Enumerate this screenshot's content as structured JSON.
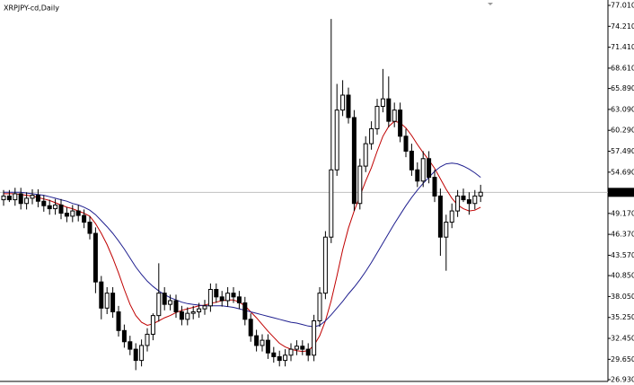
{
  "chart_data": {
    "type": "candlestick",
    "title": "XRPJPY-cd,Daily",
    "open": [
      51.0,
      51.5,
      51.0,
      51.8,
      50.5,
      51.2,
      51.6,
      50.8,
      50.2,
      49.8,
      50.3,
      49.2,
      48.8,
      49.5,
      48.9,
      48.0,
      46.5,
      40.0,
      36.5,
      38.5,
      36.0,
      33.5,
      32.0,
      31.0,
      29.5,
      31.5,
      33.0,
      35.5,
      38.5,
      37.0,
      37.5,
      36.0,
      35.0,
      35.8,
      36.0,
      36.4,
      36.8,
      39.0,
      38.0,
      37.5,
      38.5,
      38.0,
      37.2,
      35.0,
      32.8,
      31.5,
      32.2,
      30.5,
      30.0,
      29.5,
      30.2,
      31.0,
      31.4,
      31.0,
      30.2,
      34.8,
      38.5,
      46.0,
      55.0,
      63.0,
      65.0,
      62.0,
      50.5,
      55.5,
      58.5,
      60.5,
      63.5,
      64.5,
      61.5,
      63.0,
      59.5,
      57.5,
      55.0,
      53.5,
      56.5,
      54.0,
      51.5,
      46.0,
      48.0,
      49.5,
      51.5,
      51.0,
      50.5,
      51.5
    ],
    "high": [
      52.3,
      52.3,
      52.6,
      52.6,
      52.0,
      52.4,
      52.4,
      51.6,
      51.0,
      51.1,
      51.1,
      50.0,
      50.3,
      50.3,
      49.7,
      48.8,
      47.3,
      40.8,
      39.3,
      39.3,
      36.8,
      34.3,
      32.8,
      31.8,
      32.3,
      33.8,
      35.8,
      42.5,
      39.3,
      38.3,
      38.3,
      36.8,
      36.6,
      36.8,
      37.2,
      37.6,
      39.8,
      39.8,
      38.8,
      39.3,
      39.3,
      38.8,
      38.0,
      35.8,
      33.6,
      33.0,
      33.0,
      31.3,
      30.8,
      31.0,
      31.8,
      32.2,
      32.2,
      31.8,
      35.6,
      39.3,
      46.8,
      75.2,
      66.5,
      67.0,
      66.0,
      63.0,
      56.5,
      59.5,
      61.5,
      64.5,
      68.5,
      67.5,
      64.0,
      64.0,
      60.5,
      58.5,
      56.0,
      57.5,
      57.5,
      55.0,
      52.5,
      49.0,
      50.5,
      52.3,
      52.5,
      52.0,
      52.3,
      53.0
    ],
    "low": [
      50.2,
      50.7,
      50.2,
      49.7,
      49.7,
      50.4,
      50.0,
      49.4,
      49.0,
      49.0,
      48.4,
      48.0,
      48.0,
      48.1,
      47.2,
      45.7,
      38.5,
      35.0,
      35.7,
      35.2,
      32.7,
      31.2,
      30.2,
      28.2,
      28.7,
      30.7,
      32.2,
      34.7,
      36.2,
      36.2,
      35.2,
      34.2,
      34.2,
      35.0,
      35.2,
      35.6,
      36.0,
      37.2,
      36.7,
      36.7,
      37.2,
      36.4,
      34.2,
      32.0,
      30.7,
      30.7,
      29.7,
      29.2,
      28.7,
      28.7,
      29.4,
      30.2,
      30.2,
      29.4,
      29.4,
      34.0,
      37.7,
      45.2,
      54.2,
      62.2,
      61.2,
      49.5,
      49.7,
      54.7,
      57.7,
      59.7,
      62.7,
      60.7,
      60.7,
      58.7,
      56.7,
      54.2,
      52.7,
      52.7,
      53.2,
      50.7,
      43.5,
      41.5,
      47.2,
      48.7,
      50.7,
      49.0,
      49.7,
      50.7
    ],
    "close": [
      51.5,
      51.0,
      51.8,
      50.5,
      51.2,
      51.6,
      50.8,
      50.2,
      49.8,
      50.3,
      49.2,
      48.8,
      49.5,
      48.9,
      48.0,
      46.5,
      40.0,
      36.5,
      38.5,
      36.0,
      33.5,
      32.0,
      31.0,
      29.5,
      31.5,
      33.0,
      35.5,
      38.5,
      37.0,
      37.5,
      36.0,
      35.0,
      35.8,
      36.0,
      36.4,
      36.8,
      39.0,
      38.0,
      37.5,
      38.5,
      38.0,
      37.2,
      35.0,
      32.8,
      31.5,
      32.2,
      30.5,
      30.0,
      29.5,
      30.2,
      31.0,
      31.4,
      31.0,
      30.2,
      34.8,
      38.5,
      46.0,
      55.0,
      63.0,
      65.0,
      62.0,
      50.5,
      55.5,
      58.5,
      60.5,
      63.5,
      64.5,
      61.5,
      63.0,
      59.5,
      57.5,
      55.0,
      53.5,
      56.5,
      54.0,
      51.5,
      46.0,
      48.0,
      49.5,
      51.5,
      51.0,
      50.5,
      51.5,
      52.0
    ],
    "up_color": "#ffffff",
    "down_color": "#000000",
    "overlays": [
      {
        "color": "#c00000",
        "values": [
          51.8,
          51.8,
          51.8,
          51.7,
          51.6,
          51.5,
          51.3,
          51.1,
          50.9,
          50.6,
          50.3,
          50.0,
          49.8,
          49.5,
          49.2,
          48.8,
          47.8,
          46.5,
          45.0,
          43.2,
          41.2,
          39.0,
          37.0,
          35.5,
          34.6,
          34.2,
          34.4,
          34.8,
          35.2,
          35.5,
          35.9,
          36.2,
          36.4,
          36.6,
          36.8,
          36.9,
          37.1,
          37.3,
          37.5,
          37.6,
          37.6,
          37.3,
          36.8,
          36.0,
          35.2,
          34.3,
          33.4,
          32.6,
          31.8,
          31.3,
          31.0,
          30.8,
          30.7,
          30.8,
          31.5,
          32.8,
          34.8,
          37.5,
          40.8,
          44.3,
          47.2,
          49.5,
          51.5,
          53.5,
          55.3,
          57.5,
          59.5,
          60.8,
          61.5,
          61.3,
          60.6,
          59.6,
          58.4,
          57.3,
          56.3,
          55.2,
          53.8,
          52.4,
          51.2,
          50.3,
          49.8,
          49.5,
          49.6,
          50.0
        ]
      },
      {
        "color": "#1f1f8f",
        "values": [
          52.0,
          52.0,
          52.0,
          52.0,
          51.9,
          51.8,
          51.7,
          51.6,
          51.4,
          51.2,
          51.0,
          50.8,
          50.5,
          50.3,
          50.0,
          49.6,
          49.0,
          48.2,
          47.4,
          46.5,
          45.5,
          44.4,
          43.2,
          42.0,
          41.0,
          40.1,
          39.4,
          38.8,
          38.3,
          37.9,
          37.6,
          37.3,
          37.1,
          37.0,
          36.9,
          36.8,
          36.8,
          36.8,
          36.8,
          36.7,
          36.6,
          36.4,
          36.2,
          36.0,
          35.8,
          35.6,
          35.4,
          35.2,
          35.0,
          34.8,
          34.6,
          34.5,
          34.3,
          34.1,
          34.0,
          34.2,
          34.8,
          35.6,
          36.5,
          37.4,
          38.4,
          39.3,
          40.3,
          41.4,
          42.6,
          43.9,
          45.2,
          46.5,
          47.8,
          49.0,
          50.2,
          51.3,
          52.3,
          53.2,
          54.0,
          54.8,
          55.4,
          55.8,
          55.9,
          55.8,
          55.5,
          55.1,
          54.6,
          54.0
        ]
      }
    ],
    "current": {
      "value": 51.99,
      "label": "51.990"
    },
    "ylim": [
      26.69,
      77.73
    ],
    "yticks": [
      {
        "value": 77.01,
        "label": "77.010"
      },
      {
        "value": 74.21,
        "label": "74.210"
      },
      {
        "value": 71.41,
        "label": "71.410"
      },
      {
        "value": 68.61,
        "label": "68.610"
      },
      {
        "value": 65.89,
        "label": "65.890"
      },
      {
        "value": 63.09,
        "label": "63.090"
      },
      {
        "value": 60.29,
        "label": "60.290"
      },
      {
        "value": 57.49,
        "label": "57.490"
      },
      {
        "value": 54.69,
        "label": "54.690"
      },
      {
        "value": 49.17,
        "label": "49.170"
      },
      {
        "value": 46.37,
        "label": "46.370"
      },
      {
        "value": 43.57,
        "label": "43.570"
      },
      {
        "value": 40.85,
        "label": "40.850"
      },
      {
        "value": 38.05,
        "label": "38.050"
      },
      {
        "value": 35.25,
        "label": "35.250"
      },
      {
        "value": 32.45,
        "label": "32.450"
      },
      {
        "value": 29.65,
        "label": "29.650"
      },
      {
        "value": 26.93,
        "label": "26.930"
      }
    ]
  }
}
